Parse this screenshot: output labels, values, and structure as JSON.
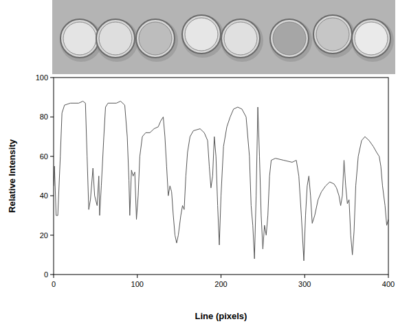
{
  "chart_data": {
    "type": "line",
    "x_label": "Line (pixels)",
    "y_label": "Relative Intensity",
    "xlim": [
      0,
      400
    ],
    "xticks": [
      0,
      100,
      200,
      300,
      400
    ],
    "ylim": [
      0,
      100
    ],
    "yticks": [
      0,
      20,
      40,
      60,
      80,
      100
    ],
    "grid": false,
    "color": "#555555",
    "x": [
      0,
      1,
      3,
      5,
      8,
      10,
      13,
      20,
      30,
      35,
      38,
      40,
      42,
      44,
      47,
      49,
      52,
      54,
      55,
      57,
      60,
      62,
      65,
      75,
      80,
      85,
      88,
      90,
      91,
      93,
      95,
      97,
      99,
      101,
      103,
      106,
      110,
      115,
      120,
      125,
      128,
      131,
      133,
      135,
      137,
      139,
      141,
      143,
      145,
      147,
      149,
      152,
      154,
      156,
      158,
      160,
      163,
      167,
      175,
      180,
      184,
      186,
      188,
      190,
      192,
      194,
      196,
      198,
      200,
      203,
      207,
      211,
      215,
      220,
      225,
      230,
      234,
      236,
      238,
      240,
      242,
      244,
      246,
      248,
      250,
      252,
      254,
      256,
      258,
      260,
      265,
      275,
      285,
      290,
      293,
      296,
      299,
      301,
      303,
      305,
      307,
      309,
      312,
      316,
      320,
      325,
      330,
      335,
      338,
      341,
      343,
      345,
      347,
      349,
      351,
      353,
      355,
      357,
      359,
      361,
      364,
      368,
      372,
      377,
      382,
      386,
      389,
      391,
      393,
      396,
      398,
      400
    ],
    "values": [
      45,
      55,
      30,
      30,
      60,
      82,
      86,
      87,
      87,
      88,
      87,
      60,
      33,
      38,
      54,
      40,
      35,
      50,
      30,
      45,
      70,
      85,
      87,
      87,
      88,
      86,
      70,
      48,
      30,
      53,
      50,
      52,
      28,
      40,
      60,
      70,
      72,
      72,
      74,
      75,
      78,
      80,
      70,
      55,
      40,
      45,
      42,
      30,
      20,
      16,
      20,
      30,
      35,
      33,
      50,
      62,
      70,
      73,
      74,
      72,
      68,
      55,
      44,
      50,
      70,
      60,
      35,
      15,
      40,
      65,
      75,
      80,
      84,
      85,
      84,
      80,
      60,
      35,
      25,
      8,
      40,
      85,
      60,
      30,
      13,
      25,
      20,
      30,
      50,
      58,
      59,
      58,
      57,
      58,
      50,
      30,
      7,
      30,
      45,
      50,
      40,
      26,
      30,
      38,
      42,
      45,
      47,
      46,
      44,
      40,
      35,
      40,
      58,
      45,
      36,
      38,
      20,
      10,
      22,
      45,
      60,
      68,
      70,
      68,
      65,
      62,
      60,
      55,
      45,
      35,
      25,
      28
    ]
  }
}
